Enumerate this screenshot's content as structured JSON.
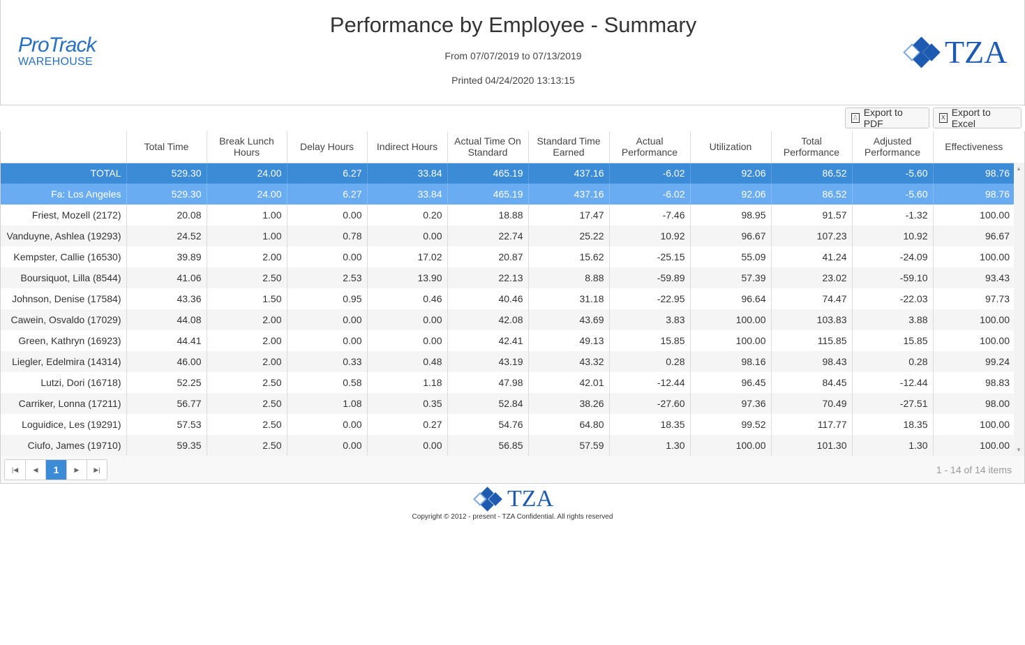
{
  "brand": {
    "line1": "ProTrack",
    "line2": "WAREHOUSE"
  },
  "report": {
    "title": "Performance by Employee - Summary",
    "date_range": "From 07/07/2019 to 07/13/2019",
    "printed": "Printed 04/24/2020 13:13:15"
  },
  "logo": {
    "text": "TZA",
    "color": "#1e5bb0"
  },
  "toolbar": {
    "export_pdf": "Export to PDF",
    "export_excel": "Export to Excel"
  },
  "table": {
    "columns": [
      "",
      "Total Time",
      "Break Lunch Hours",
      "Delay Hours",
      "Indirect Hours",
      "Actual Time On Standard",
      "Standard Time Earned",
      "Actual Performance",
      "Utilization",
      "Total Performance",
      "Adjusted Performance",
      "Effectiveness"
    ],
    "total_row": [
      "TOTAL",
      "529.30",
      "24.00",
      "6.27",
      "33.84",
      "465.19",
      "437.16",
      "-6.02",
      "92.06",
      "86.52",
      "-5.60",
      "98.76"
    ],
    "group_row": [
      "Fa: Los Angeles",
      "529.30",
      "24.00",
      "6.27",
      "33.84",
      "465.19",
      "437.16",
      "-6.02",
      "92.06",
      "86.52",
      "-5.60",
      "98.76"
    ],
    "rows": [
      [
        "Friest, Mozell (2172)",
        "20.08",
        "1.00",
        "0.00",
        "0.20",
        "18.88",
        "17.47",
        "-7.46",
        "98.95",
        "91.57",
        "-1.32",
        "100.00"
      ],
      [
        "Vanduyne, Ashlea (19293)",
        "24.52",
        "1.00",
        "0.78",
        "0.00",
        "22.74",
        "25.22",
        "10.92",
        "96.67",
        "107.23",
        "10.92",
        "96.67"
      ],
      [
        "Kempster, Callie (16530)",
        "39.89",
        "2.00",
        "0.00",
        "17.02",
        "20.87",
        "15.62",
        "-25.15",
        "55.09",
        "41.24",
        "-24.09",
        "100.00"
      ],
      [
        "Boursiquot, Lilla (8544)",
        "41.06",
        "2.50",
        "2.53",
        "13.90",
        "22.13",
        "8.88",
        "-59.89",
        "57.39",
        "23.02",
        "-59.10",
        "93.43"
      ],
      [
        "Johnson, Denise (17584)",
        "43.36",
        "1.50",
        "0.95",
        "0.46",
        "40.46",
        "31.18",
        "-22.95",
        "96.64",
        "74.47",
        "-22.03",
        "97.73"
      ],
      [
        "Cawein, Osvaldo (17029)",
        "44.08",
        "2.00",
        "0.00",
        "0.00",
        "42.08",
        "43.69",
        "3.83",
        "100.00",
        "103.83",
        "3.88",
        "100.00"
      ],
      [
        "Green, Kathryn (16923)",
        "44.41",
        "2.00",
        "0.00",
        "0.00",
        "42.41",
        "49.13",
        "15.85",
        "100.00",
        "115.85",
        "15.85",
        "100.00"
      ],
      [
        "Liegler, Edelmira (14314)",
        "46.00",
        "2.00",
        "0.33",
        "0.48",
        "43.19",
        "43.32",
        "0.28",
        "98.16",
        "98.43",
        "0.28",
        "99.24"
      ],
      [
        "Lutzi, Dori (16718)",
        "52.25",
        "2.50",
        "0.58",
        "1.18",
        "47.98",
        "42.01",
        "-12.44",
        "96.45",
        "84.45",
        "-12.44",
        "98.83"
      ],
      [
        "Carriker, Lonna (17211)",
        "56.77",
        "2.50",
        "1.08",
        "0.35",
        "52.84",
        "38.26",
        "-27.60",
        "97.36",
        "70.49",
        "-27.51",
        "98.00"
      ],
      [
        "Loguidice, Les (19291)",
        "57.53",
        "2.50",
        "0.00",
        "0.27",
        "54.76",
        "64.80",
        "18.35",
        "99.52",
        "117.77",
        "18.35",
        "100.00"
      ],
      [
        "Ciufo, James (19710)",
        "59.35",
        "2.50",
        "0.00",
        "0.00",
        "56.85",
        "57.59",
        "1.30",
        "100.00",
        "101.30",
        "1.30",
        "100.00"
      ]
    ]
  },
  "pager": {
    "current_page": "1",
    "info": "1 - 14 of 14 items"
  },
  "footer": {
    "copyright": "Copyright © 2012 - present - TZA Confidential. All rights reserved"
  }
}
